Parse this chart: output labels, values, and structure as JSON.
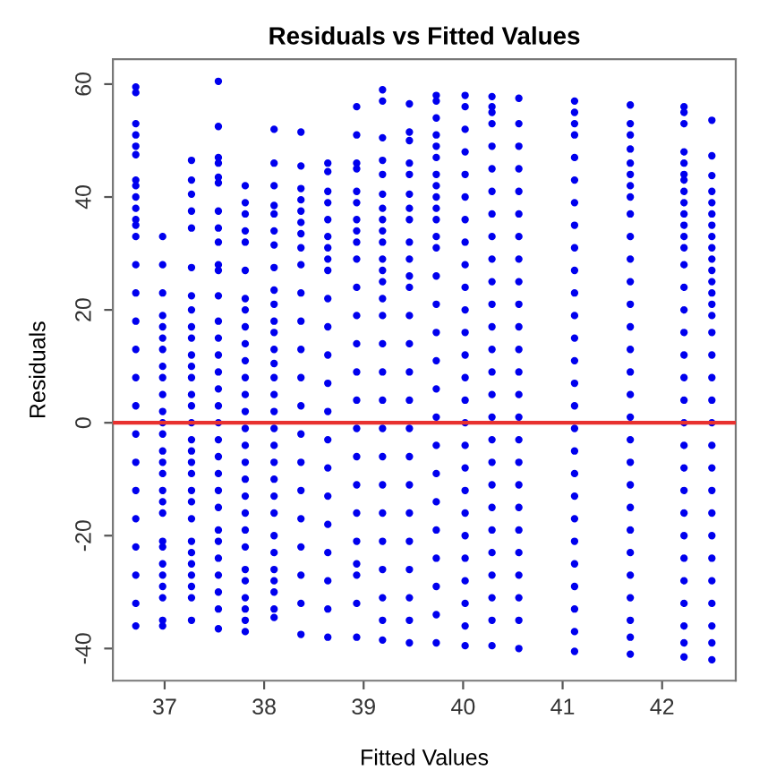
{
  "chart_data": {
    "type": "scatter",
    "title": "Residuals vs Fitted Values",
    "xlabel": "Fitted Values",
    "ylabel": "Residuals",
    "xlim": [
      36.48,
      42.74
    ],
    "ylim": [
      -45.7,
      64.4
    ],
    "xticks": [
      37,
      38,
      39,
      40,
      41,
      42
    ],
    "yticks": [
      -40,
      -20,
      0,
      20,
      40,
      60
    ],
    "grid": false,
    "legend": false,
    "marker": "circle",
    "ref_lines": [
      {
        "axis": "y",
        "value": 0,
        "color": "#e8312f"
      }
    ],
    "series": [
      {
        "color": "#0000ee",
        "x": [
          36.71,
          36.71,
          36.71,
          36.71,
          36.71,
          36.71,
          36.71,
          36.71,
          36.71,
          36.71,
          36.71,
          36.71,
          36.71,
          36.71,
          36.71,
          36.71,
          36.71,
          36.71,
          36.71,
          36.71,
          36.71,
          36.71,
          36.71,
          36.71,
          36.71,
          36.71,
          36.71
        ],
        "values": [
          59.5,
          58.5,
          53,
          51,
          49,
          47.5,
          43,
          42,
          40,
          38,
          36,
          35,
          33,
          28,
          23,
          18,
          13,
          8,
          3,
          -2,
          -7,
          -12,
          -17,
          -22,
          -27,
          -32,
          -36
        ]
      },
      {
        "color": "#0000ee",
        "x": [
          36.98,
          36.98,
          36.98,
          36.98,
          36.98,
          36.98,
          36.98,
          36.98,
          36.98,
          36.98,
          36.98,
          36.98,
          36.98,
          36.98,
          36.98,
          36.98,
          36.98,
          36.98,
          36.98,
          36.98,
          36.98,
          36.98,
          36.98,
          36.98,
          36.98,
          36.98,
          36.98
        ],
        "values": [
          33,
          28,
          23,
          19,
          17,
          15,
          13,
          10,
          8,
          5,
          2,
          0,
          -2,
          -5,
          -7,
          -9,
          -12,
          -14,
          -16,
          -21,
          -22,
          -25,
          -27,
          -29,
          -31,
          -35,
          -36
        ]
      },
      {
        "color": "#0000ee",
        "x": [
          37.27,
          37.27,
          37.27,
          37.27,
          37.27,
          37.27,
          37.27,
          37.27,
          37.27,
          37.27,
          37.27,
          37.27,
          37.27,
          37.27,
          37.27,
          37.27,
          37.27,
          37.27,
          37.27,
          37.27,
          37.27,
          37.27,
          37.27,
          37.27,
          37.27,
          37.27,
          37.27,
          37.27,
          37.27,
          37.27
        ],
        "values": [
          46.5,
          43,
          40.5,
          37.5,
          34.5,
          27.5,
          22.5,
          20,
          17,
          15,
          12,
          10,
          8,
          5,
          3,
          0,
          -3,
          -5,
          -7,
          -9,
          -12,
          -14,
          -17,
          -21,
          -23,
          -25,
          -27,
          -29,
          -31,
          -35
        ]
      },
      {
        "color": "#0000ee",
        "x": [
          37.54,
          37.54,
          37.54,
          37.54,
          37.54,
          37.54,
          37.54,
          37.54,
          37.54,
          37.54,
          37.54,
          37.54,
          37.54,
          37.54,
          37.54,
          37.54,
          37.54,
          37.54,
          37.54,
          37.54,
          37.54,
          37.54,
          37.54,
          37.54,
          37.54,
          37.54,
          37.54,
          37.54,
          37.54,
          37.54,
          37.54
        ],
        "values": [
          60.5,
          52.5,
          47,
          46,
          43.5,
          42.5,
          37.5,
          34.5,
          32,
          28,
          27,
          22.5,
          18,
          15,
          12,
          9,
          6,
          3,
          0,
          -3,
          -6,
          -9,
          -12,
          -15,
          -19,
          -21,
          -24,
          -27,
          -30,
          -33,
          -36.5
        ]
      },
      {
        "color": "#0000ee",
        "x": [
          37.81,
          37.81,
          37.81,
          37.81,
          37.81,
          37.81,
          37.81,
          37.81,
          37.81,
          37.81,
          37.81,
          37.81,
          37.81,
          37.81,
          37.81,
          37.81,
          37.81,
          37.81,
          37.81,
          37.81,
          37.81,
          37.81,
          37.81,
          37.81,
          37.81,
          37.81,
          37.81,
          37.81
        ],
        "values": [
          42,
          39,
          37,
          34,
          32,
          27,
          22,
          20,
          17,
          14,
          11,
          8,
          5,
          2,
          -1,
          -4,
          -7,
          -10,
          -13,
          -16,
          -19,
          -22,
          -26,
          -28,
          -31,
          -33,
          -35,
          -37
        ]
      },
      {
        "color": "#0000ee",
        "x": [
          38.1,
          38.1,
          38.1,
          38.1,
          38.1,
          38.1,
          38.1,
          38.1,
          38.1,
          38.1,
          38.1,
          38.1,
          38.1,
          38.1,
          38.1,
          38.1,
          38.1,
          38.1,
          38.1,
          38.1,
          38.1,
          38.1,
          38.1,
          38.1,
          38.1,
          38.1,
          38.1,
          38.1,
          38.1,
          38.1
        ],
        "values": [
          52,
          46,
          42,
          38.5,
          37,
          34,
          31.5,
          27.5,
          23.5,
          21,
          18,
          16,
          13,
          10.5,
          8,
          5,
          2,
          -1,
          -4,
          -7,
          -10,
          -13,
          -16,
          -20,
          -23,
          -26,
          -28,
          -30,
          -33,
          -34.5
        ]
      },
      {
        "color": "#0000ee",
        "x": [
          38.37,
          38.37,
          38.37,
          38.37,
          38.37,
          38.37,
          38.37,
          38.37,
          38.37,
          38.37,
          38.37,
          38.37,
          38.37,
          38.37,
          38.37,
          38.37,
          38.37,
          38.37,
          38.37,
          38.37,
          38.37,
          38.37
        ],
        "values": [
          51.5,
          45.5,
          41.5,
          39.5,
          37.5,
          35.5,
          33.5,
          31,
          28,
          23,
          18,
          13,
          8,
          3,
          -2,
          -7,
          -12,
          -17,
          -22,
          -27,
          -32,
          -37.5
        ]
      },
      {
        "color": "#0000ee",
        "x": [
          38.64,
          38.64,
          38.64,
          38.64,
          38.64,
          38.64,
          38.64,
          38.64,
          38.64,
          38.64,
          38.64,
          38.64,
          38.64,
          38.64,
          38.64,
          38.64,
          38.64,
          38.64,
          38.64,
          38.64,
          38.64,
          38.64
        ],
        "values": [
          46,
          44.5,
          41,
          39,
          36,
          33,
          31,
          29,
          27,
          22,
          17,
          12,
          7,
          2,
          -3,
          -8,
          -13,
          -18,
          -23,
          -28,
          -33,
          -38
        ]
      },
      {
        "color": "#0000ee",
        "x": [
          38.93,
          38.93,
          38.93,
          38.93,
          38.93,
          38.93,
          38.93,
          38.93,
          38.93,
          38.93,
          38.93,
          38.93,
          38.93,
          38.93,
          38.93,
          38.93,
          38.93,
          38.93,
          38.93,
          38.93,
          38.93,
          38.93,
          38.93,
          38.93
        ],
        "values": [
          56,
          51,
          46,
          45,
          41,
          39,
          36,
          34,
          32,
          29,
          24,
          19,
          14,
          9,
          4,
          -1,
          -6,
          -11,
          -16,
          -21,
          -25,
          -27,
          -32,
          -38
        ]
      },
      {
        "color": "#0000ee",
        "x": [
          39.19,
          39.19,
          39.19,
          39.19,
          39.19,
          39.19,
          39.19,
          39.19,
          39.19,
          39.19,
          39.19,
          39.19,
          39.19,
          39.19,
          39.19,
          39.19,
          39.19,
          39.19,
          39.19,
          39.19,
          39.19,
          39.19,
          39.19,
          39.19,
          39.19,
          39.19,
          39.19
        ],
        "values": [
          59,
          57,
          50.5,
          46.5,
          44,
          40.5,
          38,
          36,
          34,
          32,
          29,
          27,
          25,
          22,
          19,
          14,
          9,
          4,
          -1,
          -6,
          -11,
          -16,
          -21,
          -26,
          -31,
          -35,
          -38.5
        ]
      },
      {
        "color": "#0000ee",
        "x": [
          39.46,
          39.46,
          39.46,
          39.46,
          39.46,
          39.46,
          39.46,
          39.46,
          39.46,
          39.46,
          39.46,
          39.46,
          39.46,
          39.46,
          39.46,
          39.46,
          39.46,
          39.46,
          39.46,
          39.46,
          39.46,
          39.46,
          39.46,
          39.46,
          39.46
        ],
        "values": [
          56.5,
          51.5,
          50,
          46,
          44,
          40.5,
          38,
          36,
          32,
          29,
          26,
          24,
          19,
          14,
          9,
          4,
          -1,
          -6,
          -11,
          -16,
          -21,
          -26,
          -31,
          -35,
          -39
        ]
      },
      {
        "color": "#0000ee",
        "x": [
          39.73,
          39.73,
          39.73,
          39.73,
          39.73,
          39.73,
          39.73,
          39.73,
          39.73,
          39.73,
          39.73,
          39.73,
          39.73,
          39.73,
          39.73,
          39.73,
          39.73,
          39.73,
          39.73,
          39.73,
          39.73,
          39.73,
          39.73,
          39.73,
          39.73,
          39.73,
          39.73
        ],
        "values": [
          58,
          57,
          54,
          51,
          49,
          47,
          44,
          42,
          40,
          38,
          36,
          33,
          31,
          26,
          21,
          16,
          11,
          6,
          1,
          -4,
          -9,
          -14,
          -19,
          -24,
          -29,
          -34,
          -39
        ]
      },
      {
        "color": "#0000ee",
        "x": [
          40.02,
          40.02,
          40.02,
          40.02,
          40.02,
          40.02,
          40.02,
          40.02,
          40.02,
          40.02,
          40.02,
          40.02,
          40.02,
          40.02,
          40.02,
          40.02,
          40.02,
          40.02,
          40.02,
          40.02,
          40.02,
          40.02,
          40.02,
          40.02,
          40.02,
          40.02
        ],
        "values": [
          58,
          56,
          52,
          48,
          44,
          40,
          36,
          32,
          28,
          24,
          20,
          16,
          12,
          8,
          4,
          0,
          -4,
          -8,
          -12,
          -16,
          -20,
          -24,
          -28,
          -32,
          -36,
          -39.5
        ]
      },
      {
        "color": "#0000ee",
        "x": [
          40.29,
          40.29,
          40.29,
          40.29,
          40.29,
          40.29,
          40.29,
          40.29,
          40.29,
          40.29,
          40.29,
          40.29,
          40.29,
          40.29,
          40.29,
          40.29,
          40.29,
          40.29,
          40.29,
          40.29,
          40.29,
          40.29,
          40.29,
          40.29,
          40.29,
          40.29,
          40.29
        ],
        "values": [
          57.8,
          56,
          55,
          53,
          49,
          45,
          41,
          37,
          33,
          29,
          25,
          21,
          17,
          13,
          9,
          5,
          1,
          -3,
          -7,
          -11,
          -15,
          -19,
          -23,
          -27,
          -31,
          -35,
          -39.5
        ]
      },
      {
        "color": "#0000ee",
        "x": [
          40.56,
          40.56,
          40.56,
          40.56,
          40.56,
          40.56,
          40.56,
          40.56,
          40.56,
          40.56,
          40.56,
          40.56,
          40.56,
          40.56,
          40.56,
          40.56,
          40.56,
          40.56,
          40.56,
          40.56,
          40.56,
          40.56,
          40.56,
          40.56,
          40.56
        ],
        "values": [
          57.5,
          53,
          49,
          45,
          41,
          37,
          33,
          29,
          25,
          21,
          17,
          13,
          9,
          5,
          1,
          -3,
          -7,
          -11,
          -15,
          -19,
          -23,
          -27,
          -31,
          -35,
          -40
        ]
      },
      {
        "color": "#0000ee",
        "x": [
          41.12,
          41.12,
          41.12,
          41.12,
          41.12,
          41.12,
          41.12,
          41.12,
          41.12,
          41.12,
          41.12,
          41.12,
          41.12,
          41.12,
          41.12,
          41.12,
          41.12,
          41.12,
          41.12,
          41.12,
          41.12,
          41.12,
          41.12,
          41.12,
          41.12,
          41.12,
          41.12
        ],
        "values": [
          57,
          55,
          53,
          51,
          47,
          43,
          39,
          35,
          31,
          27,
          23,
          19,
          15,
          11,
          7,
          3,
          -1,
          -5,
          -9,
          -13,
          -17,
          -21,
          -25,
          -29,
          -33,
          -37,
          -40.5
        ]
      },
      {
        "color": "#0000ee",
        "x": [
          41.68,
          41.68,
          41.68,
          41.68,
          41.68,
          41.68,
          41.68,
          41.68,
          41.68,
          41.68,
          41.68,
          41.68,
          41.68,
          41.68,
          41.68,
          41.68,
          41.68,
          41.68,
          41.68,
          41.68,
          41.68,
          41.68,
          41.68,
          41.68,
          41.68,
          41.68,
          41.68,
          41.68,
          41.68
        ],
        "values": [
          56.3,
          53,
          51,
          48.5,
          46,
          44,
          42,
          40,
          37,
          33,
          29,
          25,
          21,
          17,
          13,
          9,
          5,
          1,
          -3,
          -7,
          -11,
          -15,
          -19,
          -23,
          -27,
          -31,
          -35,
          -38,
          -41
        ]
      },
      {
        "color": "#0000ee",
        "x": [
          42.22,
          42.22,
          42.22,
          42.22,
          42.22,
          42.22,
          42.22,
          42.22,
          42.22,
          42.22,
          42.22,
          42.22,
          42.22,
          42.22,
          42.22,
          42.22,
          42.22,
          42.22,
          42.22,
          42.22,
          42.22,
          42.22,
          42.22,
          42.22,
          42.22,
          42.22,
          42.22,
          42.22,
          42.22,
          42.22,
          42.22,
          42.22
        ],
        "values": [
          56,
          55,
          53,
          48,
          46,
          44,
          43,
          41,
          39,
          37,
          35,
          33,
          31,
          28,
          24,
          20,
          16,
          12,
          8,
          4,
          0,
          -4,
          -8,
          -12,
          -16,
          -20,
          -24,
          -28,
          -32,
          -36,
          -39,
          -41.5
        ]
      },
      {
        "color": "#0000ee",
        "x": [
          42.5,
          42.5,
          42.5,
          42.5,
          42.5,
          42.5,
          42.5,
          42.5,
          42.5,
          42.5,
          42.5,
          42.5,
          42.5,
          42.5,
          42.5,
          42.5,
          42.5,
          42.5,
          42.5,
          42.5,
          42.5,
          42.5,
          42.5,
          42.5,
          42.5,
          42.5,
          42.5,
          42.5,
          42.5,
          42.5,
          42.5
        ],
        "values": [
          53.6,
          47.3,
          43.8,
          41,
          39,
          37,
          35,
          33,
          31,
          29,
          27,
          25,
          23,
          21,
          19,
          16,
          12,
          8,
          4,
          0,
          -4,
          -8,
          -12,
          -16,
          -20,
          -24,
          -28,
          -32,
          -36,
          -39,
          -42
        ]
      }
    ]
  }
}
